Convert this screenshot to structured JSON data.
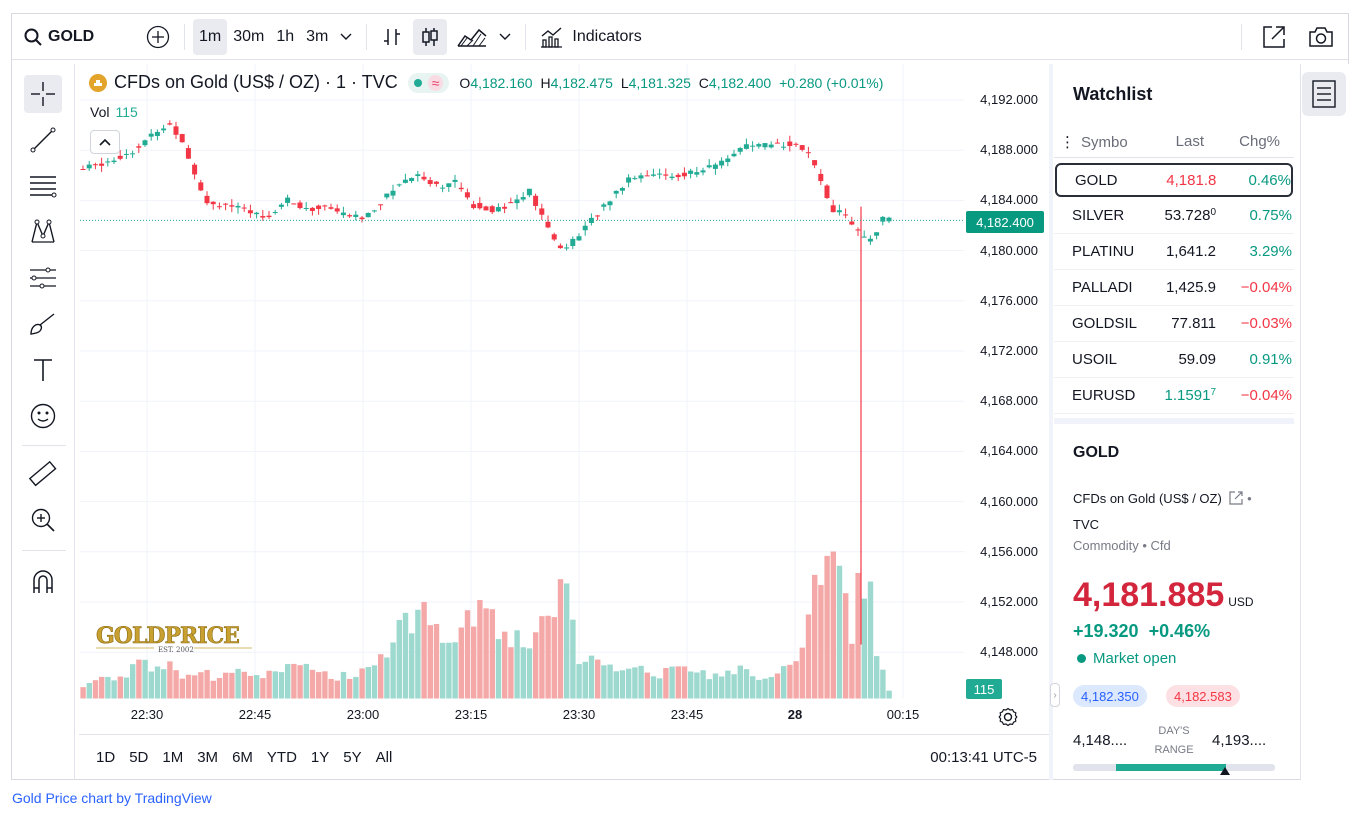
{
  "toolbar": {
    "symbol": "GOLD",
    "intervals": [
      "1m",
      "30m",
      "1h",
      "3m"
    ],
    "active_interval": "1m",
    "indicators_label": "Indicators"
  },
  "legend": {
    "title": "CFDs on Gold (US$ / OZ) · 1 · TVC",
    "o_label": "O",
    "o_value": "4,182.160",
    "h_label": "H",
    "h_value": "4,182.475",
    "l_label": "L",
    "l_value": "4,181.325",
    "c_label": "C",
    "c_value": "4,182.400",
    "change": "+0.280 (+0.01%)",
    "vol_label": "Vol",
    "vol_value": "115"
  },
  "chart_data": {
    "type": "candlestick",
    "title": "CFDs on Gold (US$ / OZ) · 1 · TVC",
    "y_ticks": [
      "4,192.000",
      "4,188.000",
      "4,184.000",
      "4,180.000",
      "4,176.000",
      "4,172.000",
      "4,168.000",
      "4,164.000",
      "4,160.000",
      "4,156.000",
      "4,152.000",
      "4,148.000"
    ],
    "x_ticks": [
      "22:30",
      "22:45",
      "23:00",
      "23:15",
      "23:30",
      "23:45",
      "28",
      "00:15"
    ],
    "ylim": [
      4145.5,
      4193.6
    ],
    "last_price_label": "4,182.400",
    "last_volume_label": "115",
    "approx_close_path": [
      [
        0,
        4186.5
      ],
      [
        10,
        4187.3
      ],
      [
        18,
        4188.2
      ],
      [
        24,
        4189.6
      ],
      [
        28,
        4190.0
      ],
      [
        32,
        4188.8
      ],
      [
        36,
        4186.2
      ],
      [
        40,
        4183.8
      ],
      [
        46,
        4183.7
      ],
      [
        54,
        4183.0
      ],
      [
        60,
        4182.8
      ],
      [
        66,
        4184.1
      ],
      [
        72,
        4183.2
      ],
      [
        78,
        4183.5
      ],
      [
        84,
        4182.9
      ],
      [
        90,
        4182.6
      ],
      [
        96,
        4183.8
      ],
      [
        102,
        4185.4
      ],
      [
        108,
        4186.1
      ],
      [
        114,
        4185.2
      ],
      [
        120,
        4185.4
      ],
      [
        126,
        4183.6
      ],
      [
        132,
        4183.3
      ],
      [
        138,
        4183.7
      ],
      [
        144,
        4184.7
      ],
      [
        150,
        4181.7
      ],
      [
        154,
        4180.2
      ],
      [
        158,
        4180.7
      ],
      [
        164,
        4182.4
      ],
      [
        170,
        4184.1
      ],
      [
        176,
        4185.8
      ],
      [
        182,
        4186.2
      ],
      [
        188,
        4185.9
      ],
      [
        194,
        4186.1
      ],
      [
        200,
        4186.4
      ],
      [
        206,
        4187.1
      ],
      [
        212,
        4188.2
      ],
      [
        218,
        4188.3
      ],
      [
        224,
        4188.4
      ],
      [
        230,
        4188.6
      ],
      [
        234,
        4187.6
      ],
      [
        238,
        4185.5
      ],
      [
        242,
        4183.3
      ],
      [
        246,
        4182.9
      ],
      [
        250,
        4181.5
      ],
      [
        253,
        4180.6
      ],
      [
        256,
        4181.5
      ],
      [
        258,
        4182.7
      ],
      [
        260,
        4182.4
      ]
    ],
    "volume_path": [
      [
        0,
        14
      ],
      [
        6,
        28
      ],
      [
        12,
        20
      ],
      [
        18,
        44
      ],
      [
        22,
        26
      ],
      [
        26,
        40
      ],
      [
        30,
        26
      ],
      [
        36,
        30
      ],
      [
        42,
        22
      ],
      [
        48,
        30
      ],
      [
        54,
        30
      ],
      [
        60,
        24
      ],
      [
        66,
        34
      ],
      [
        72,
        30
      ],
      [
        78,
        22
      ],
      [
        84,
        26
      ],
      [
        90,
        34
      ],
      [
        96,
        42
      ],
      [
        100,
        108
      ],
      [
        104,
        80
      ],
      [
        108,
        100
      ],
      [
        112,
        66
      ],
      [
        116,
        60
      ],
      [
        120,
        84
      ],
      [
        124,
        100
      ],
      [
        128,
        82
      ],
      [
        132,
        66
      ],
      [
        136,
        64
      ],
      [
        140,
        54
      ],
      [
        144,
        76
      ],
      [
        148,
        96
      ],
      [
        152,
        130
      ],
      [
        156,
        44
      ],
      [
        160,
        40
      ],
      [
        164,
        30
      ],
      [
        170,
        36
      ],
      [
        176,
        30
      ],
      [
        182,
        26
      ],
      [
        188,
        32
      ],
      [
        194,
        26
      ],
      [
        200,
        24
      ],
      [
        206,
        34
      ],
      [
        212,
        24
      ],
      [
        216,
        20
      ],
      [
        220,
        28
      ],
      [
        226,
        36
      ],
      [
        232,
        134
      ],
      [
        234,
        150
      ],
      [
        236,
        150
      ],
      [
        240,
        104
      ],
      [
        242,
        64
      ],
      [
        244,
        124
      ],
      [
        246,
        94
      ],
      [
        248,
        112
      ],
      [
        250,
        40
      ],
      [
        252,
        38
      ],
      [
        254,
        10
      ]
    ]
  },
  "time_ranges": [
    "1D",
    "5D",
    "1M",
    "3M",
    "6M",
    "YTD",
    "1Y",
    "5Y",
    "All"
  ],
  "clock": "00:13:41 UTC-5",
  "watchlist": {
    "title": "Watchlist",
    "col_symbol": "Symbo",
    "col_last": "Last",
    "col_chg": "Chg%",
    "rows": [
      {
        "sym": "GOLD",
        "last": "4,181.8",
        "last_sup": "",
        "chg": "0.46%",
        "last_dir": "dn",
        "chg_dir": "up"
      },
      {
        "sym": "SILVER",
        "last": "53.728",
        "last_sup": "0",
        "chg": "0.75%",
        "last_dir": "",
        "chg_dir": "up"
      },
      {
        "sym": "PLATINU",
        "last": "1,641.2",
        "last_sup": "",
        "chg": "3.29%",
        "last_dir": "",
        "chg_dir": "up"
      },
      {
        "sym": "PALLADI",
        "last": "1,425.9",
        "last_sup": "",
        "chg": "−0.04%",
        "last_dir": "",
        "chg_dir": "dn"
      },
      {
        "sym": "GOLDSIL",
        "last": "77.811",
        "last_sup": "",
        "chg": "−0.03%",
        "last_dir": "",
        "chg_dir": "dn"
      },
      {
        "sym": "USOIL",
        "last": "59.09",
        "last_sup": "",
        "chg": "0.91%",
        "last_dir": "",
        "chg_dir": "up"
      },
      {
        "sym": "EURUSD",
        "last": "1.1591",
        "last_sup": "7",
        "chg": "−0.04%",
        "last_dir": "up",
        "chg_dir": "dn"
      }
    ]
  },
  "details": {
    "symbol": "GOLD",
    "name": "CFDs on Gold (US$ / OZ)",
    "exchange": "TVC",
    "type": "Commodity • Cfd",
    "price": "4,181.885",
    "currency": "USD",
    "change": "+19.320",
    "change_pct": "+0.46%",
    "market_status": "Market open",
    "bid": "4,182.350",
    "ask": "4,182.583",
    "range_low": "4,148....",
    "range_high": "4,193....",
    "range_caption_1": "DAY'S",
    "range_caption_2": "RANGE"
  },
  "watermark": {
    "brand": "GOLDPRICE",
    "est": "EST. 2002"
  },
  "footer": "Gold Price chart by TradingView",
  "colors": {
    "up": "#22ab94",
    "down": "#f23645",
    "accent": "#2962ff"
  }
}
